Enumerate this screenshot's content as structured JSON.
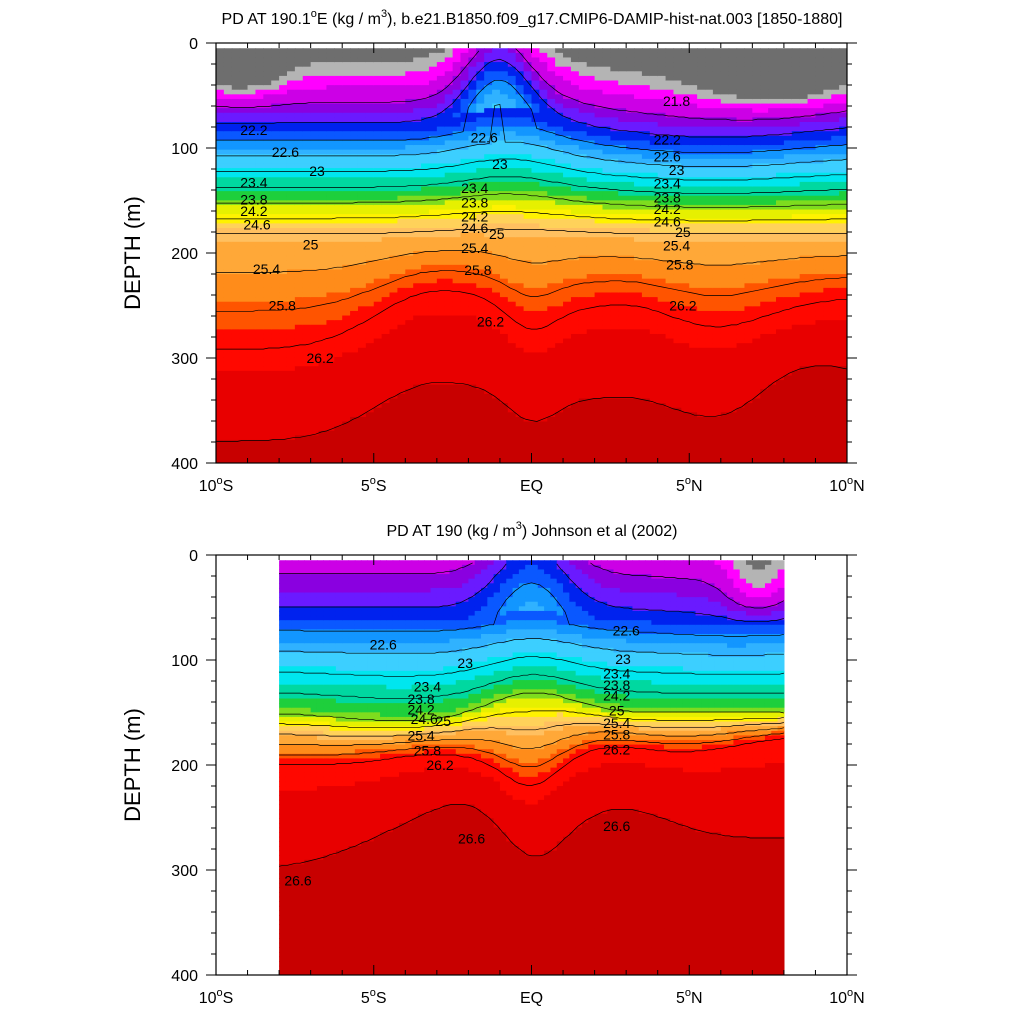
{
  "chart_data": [
    {
      "type": "heatmap",
      "title_pre": "PD AT 190.1",
      "title_sup1": "o",
      "title_mid": "E (kg / m",
      "title_sup2": "3",
      "title_post": "), b.e21.B1850.f09_g17.CMIP6-DAMIP-hist-nat.003 [1850-1880]",
      "ylabel": "DEPTH (m)",
      "xlim": [
        -10,
        10
      ],
      "ylim": [
        0,
        400
      ],
      "data_xlim": [
        -10,
        10
      ],
      "data_ylim": [
        5,
        400
      ],
      "x_ticks": [
        {
          "v": -10,
          "n": "10",
          "s": "o",
          "h": "S"
        },
        {
          "v": -5,
          "n": "5",
          "s": "o",
          "h": "S"
        },
        {
          "v": 0,
          "n": "EQ",
          "s": "",
          "h": ""
        },
        {
          "v": 5,
          "n": "5",
          "s": "o",
          "h": "N"
        },
        {
          "v": 10,
          "n": "10",
          "s": "o",
          "h": "N"
        }
      ],
      "y_ticks": [
        "0",
        "100",
        "200",
        "300",
        "400"
      ],
      "contour_labels": [
        {
          "t": "21.8",
          "x": 4.6,
          "y": 55
        },
        {
          "t": "22.2",
          "x": -8.8,
          "y": 83
        },
        {
          "t": "22.2",
          "x": 4.3,
          "y": 92
        },
        {
          "t": "22.6",
          "x": -7.8,
          "y": 104
        },
        {
          "t": "22.6",
          "x": -1.5,
          "y": 90
        },
        {
          "t": "22.6",
          "x": 4.3,
          "y": 108
        },
        {
          "t": "23",
          "x": -6.8,
          "y": 122
        },
        {
          "t": "23",
          "x": -1.0,
          "y": 115
        },
        {
          "t": "23",
          "x": 4.6,
          "y": 121
        },
        {
          "t": "23.4",
          "x": -8.8,
          "y": 133
        },
        {
          "t": "23.4",
          "x": -1.8,
          "y": 138
        },
        {
          "t": "23.4",
          "x": 4.3,
          "y": 134
        },
        {
          "t": "23.8",
          "x": -8.8,
          "y": 149
        },
        {
          "t": "23.8",
          "x": -1.8,
          "y": 152
        },
        {
          "t": "23.8",
          "x": 4.3,
          "y": 147
        },
        {
          "t": "24.2",
          "x": -8.8,
          "y": 160
        },
        {
          "t": "24.2",
          "x": -1.8,
          "y": 165
        },
        {
          "t": "24.2",
          "x": 4.3,
          "y": 158
        },
        {
          "t": "24.6",
          "x": -8.7,
          "y": 173
        },
        {
          "t": "24.6",
          "x": -1.8,
          "y": 176
        },
        {
          "t": "24.6",
          "x": 4.3,
          "y": 170
        },
        {
          "t": "25",
          "x": -7.0,
          "y": 192
        },
        {
          "t": "25",
          "x": -1.1,
          "y": 182
        },
        {
          "t": "25",
          "x": 4.8,
          "y": 180
        },
        {
          "t": "25.4",
          "x": -8.4,
          "y": 215
        },
        {
          "t": "25.4",
          "x": -1.8,
          "y": 195
        },
        {
          "t": "25.4",
          "x": 4.6,
          "y": 193
        },
        {
          "t": "25.8",
          "x": -7.9,
          "y": 250
        },
        {
          "t": "25.8",
          "x": -1.7,
          "y": 216
        },
        {
          "t": "25.8",
          "x": 4.7,
          "y": 211
        },
        {
          "t": "26.2",
          "x": -6.7,
          "y": 300
        },
        {
          "t": "26.2",
          "x": -1.3,
          "y": 265
        },
        {
          "t": "26.2",
          "x": 4.8,
          "y": 250
        }
      ]
    },
    {
      "type": "heatmap",
      "title_pre": "PD AT 190 (kg / m",
      "title_sup1": "3",
      "title_mid": ") Johnson et al (2002)",
      "title_sup2": "",
      "title_post": "",
      "ylabel": "DEPTH (m)",
      "xlim": [
        -10,
        10
      ],
      "ylim": [
        0,
        400
      ],
      "data_xlim": [
        -8,
        8
      ],
      "data_ylim": [
        5,
        400
      ],
      "x_ticks": [
        {
          "v": -10,
          "n": "10",
          "s": "o",
          "h": "S"
        },
        {
          "v": -5,
          "n": "5",
          "s": "o",
          "h": "S"
        },
        {
          "v": 0,
          "n": "EQ",
          "s": "",
          "h": ""
        },
        {
          "v": 5,
          "n": "5",
          "s": "o",
          "h": "N"
        },
        {
          "v": 10,
          "n": "10",
          "s": "o",
          "h": "N"
        }
      ],
      "y_ticks": [
        "0",
        "100",
        "200",
        "300",
        "400"
      ],
      "contour_labels": [
        {
          "t": "22.6",
          "x": -4.7,
          "y": 85
        },
        {
          "t": "22.6",
          "x": 3.0,
          "y": 72
        },
        {
          "t": "23",
          "x": -2.1,
          "y": 103
        },
        {
          "t": "23",
          "x": 2.9,
          "y": 99
        },
        {
          "t": "23.4",
          "x": -3.3,
          "y": 125
        },
        {
          "t": "23.4",
          "x": 2.7,
          "y": 113
        },
        {
          "t": "23.8",
          "x": -3.5,
          "y": 137
        },
        {
          "t": "23.8",
          "x": 2.7,
          "y": 124
        },
        {
          "t": "24.2",
          "x": -3.5,
          "y": 147
        },
        {
          "t": "24.2",
          "x": 2.7,
          "y": 134
        },
        {
          "t": "24.6",
          "x": -3.4,
          "y": 156
        },
        {
          "t": "25",
          "x": -2.8,
          "y": 158
        },
        {
          "t": "25",
          "x": 2.7,
          "y": 148
        },
        {
          "t": "25.4",
          "x": -3.5,
          "y": 172
        },
        {
          "t": "25.4",
          "x": 2.7,
          "y": 160
        },
        {
          "t": "25.8",
          "x": -3.3,
          "y": 186
        },
        {
          "t": "25.8",
          "x": 2.7,
          "y": 171
        },
        {
          "t": "26.2",
          "x": -2.9,
          "y": 200
        },
        {
          "t": "26.2",
          "x": 2.7,
          "y": 185
        },
        {
          "t": "26.6",
          "x": -1.9,
          "y": 270
        },
        {
          "t": "26.6",
          "x": 2.7,
          "y": 258
        },
        {
          "t": "26.6",
          "x": -7.4,
          "y": 310
        }
      ]
    }
  ],
  "colormap": {
    "levels": [
      21.8,
      22.2,
      22.6,
      23.0,
      23.4,
      23.8,
      24.2,
      24.6,
      25.0,
      25.4,
      25.8,
      26.2,
      26.6
    ],
    "stops": [
      [
        21.0,
        "#6e6e6e"
      ],
      [
        21.25,
        "#b4b4b4"
      ],
      [
        21.5,
        "#ff00ff"
      ],
      [
        21.8,
        "#cc00e6"
      ],
      [
        22.0,
        "#8a00e0"
      ],
      [
        22.2,
        "#6a1aff"
      ],
      [
        22.4,
        "#0022ee"
      ],
      [
        22.6,
        "#0a58ff"
      ],
      [
        22.8,
        "#1296ff"
      ],
      [
        23.0,
        "#30b2ff"
      ],
      [
        23.3,
        "#3ccfff"
      ],
      [
        23.6,
        "#00e6ee"
      ],
      [
        23.9,
        "#00d8a0"
      ],
      [
        24.1,
        "#1ecf3c"
      ],
      [
        24.3,
        "#7edc1e"
      ],
      [
        24.5,
        "#e6f000"
      ],
      [
        24.7,
        "#fff200"
      ],
      [
        24.9,
        "#ffd25a"
      ],
      [
        25.1,
        "#ffc060"
      ],
      [
        25.4,
        "#ffa838"
      ],
      [
        25.7,
        "#ff8c1a"
      ],
      [
        26.0,
        "#ff5400"
      ],
      [
        26.3,
        "#ff0800"
      ],
      [
        26.6,
        "#e80000"
      ],
      [
        27.0,
        "#c80000"
      ]
    ]
  }
}
